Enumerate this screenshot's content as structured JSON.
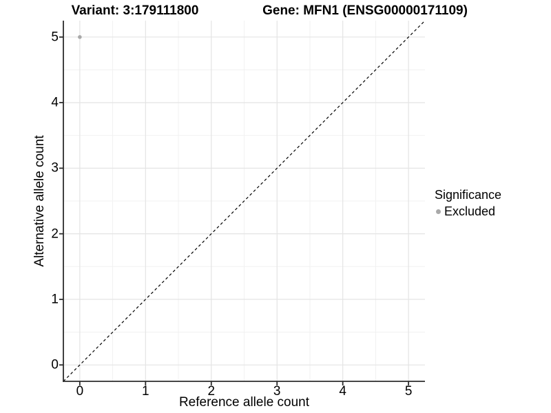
{
  "chart_data": {
    "type": "scatter",
    "titles": {
      "left": "Variant: 3:179111800",
      "right": "Gene: MFN1 (ENSG00000171109)"
    },
    "xlabel": "Reference allele count",
    "ylabel": "Alternative allele count",
    "xlim": [
      -0.25,
      5.25
    ],
    "ylim": [
      -0.25,
      5.25
    ],
    "xticks": [
      "0",
      "1",
      "2",
      "3",
      "4",
      "5"
    ],
    "yticks": [
      "0",
      "1",
      "2",
      "3",
      "4",
      "5"
    ],
    "xtick_values": [
      0,
      1,
      2,
      3,
      4,
      5
    ],
    "ytick_values": [
      0,
      1,
      2,
      3,
      4,
      5
    ],
    "minor_gridlines": [
      0.5,
      1.5,
      2.5,
      3.5,
      4.5
    ],
    "major_gridlines": [
      0,
      1,
      2,
      3,
      4,
      5
    ],
    "grid": "on",
    "points": [
      {
        "x": 0,
        "y": 5,
        "series": "Excluded"
      }
    ],
    "identity_line": {
      "style": "dashed",
      "color": "#000000",
      "x1": -0.25,
      "y1": -0.25,
      "x2": 5.25,
      "y2": 5.25
    },
    "legend": {
      "title": "Significance",
      "position": "right",
      "entries": [
        {
          "label": "Excluded",
          "color": "#A9A9A9",
          "marker": "circle"
        }
      ]
    },
    "colors": {
      "point": "#A9A9A9",
      "grid_major": "#E4E4E4",
      "grid_minor": "#F1F1F1",
      "axis_line": "#2B2B2B",
      "tick": "#2B2B2B",
      "text": "#000000",
      "background": "#FFFFFF"
    }
  }
}
